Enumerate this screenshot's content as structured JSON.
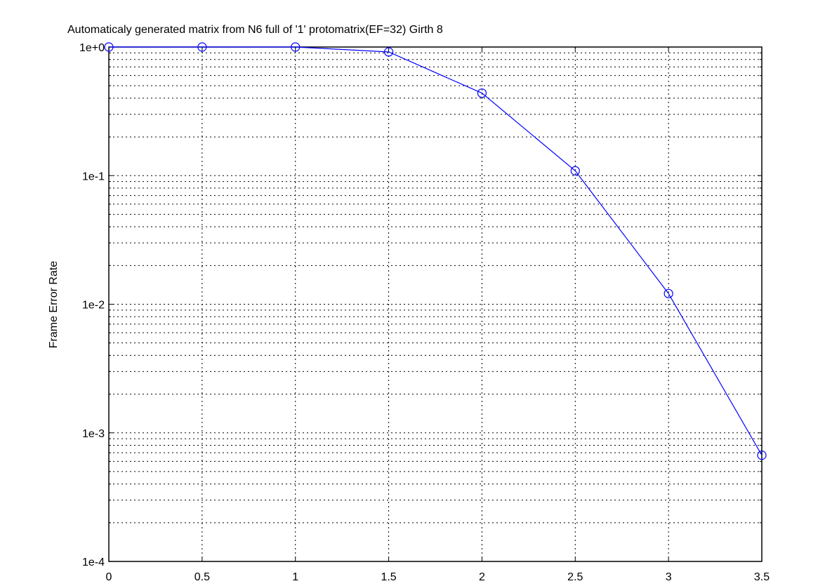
{
  "chart_data": {
    "type": "line",
    "title": "Automaticaly generated matrix from N6 full of '1' protomatrix(EF=32) Girth 8",
    "xlabel": "",
    "ylabel": "Frame Error Rate",
    "xlim": [
      0,
      3.5
    ],
    "ylim": [
      0.0001,
      1
    ],
    "yscale": "log",
    "grid": true,
    "x_ticks": [
      0,
      0.5,
      1,
      1.5,
      2,
      2.5,
      3,
      3.5
    ],
    "x_tick_labels": [
      "0",
      "0.5",
      "1",
      "1.5",
      "2",
      "2.5",
      "3",
      "3.5"
    ],
    "y_ticks": [
      1,
      0.1,
      0.01,
      0.001,
      0.0001
    ],
    "y_tick_labels": [
      "1e+0",
      "1e-1",
      "1e-2",
      "1e-3",
      "1e-4"
    ],
    "series": [
      {
        "color": "#0000ff",
        "marker": "circle",
        "x": [
          0,
          0.5,
          1,
          1.5,
          2,
          2.5,
          3,
          3.5
        ],
        "y": [
          1.0,
          1.0,
          1.0,
          0.916,
          0.438,
          0.109,
          0.0121,
          0.00067
        ]
      }
    ]
  }
}
